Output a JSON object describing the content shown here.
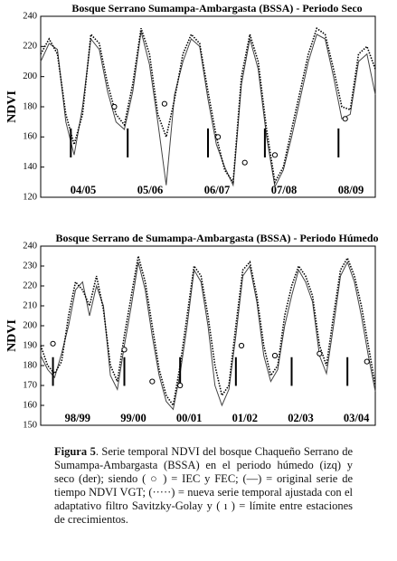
{
  "chart_data": [
    {
      "type": "line",
      "title": "Bosque Serrano Sumampa-Ambargasta (BSSA) - Periodo Seco",
      "y_label": "NDVI",
      "ylim": [
        120,
        240
      ],
      "yticks": [
        120,
        140,
        160,
        180,
        200,
        220,
        240
      ],
      "xlim": [
        0,
        5
      ],
      "season_labels": [
        "04/05",
        "05/06",
        "06/07",
        "07/08",
        "08/09"
      ],
      "x": [
        0,
        0.125,
        0.25,
        0.375,
        0.5,
        0.625,
        0.75,
        0.875,
        1,
        1.125,
        1.25,
        1.375,
        1.5,
        1.625,
        1.75,
        1.875,
        2,
        2.125,
        2.25,
        2.375,
        2.5,
        2.625,
        2.75,
        2.875,
        3,
        3.125,
        3.25,
        3.375,
        3.5,
        3.625,
        3.75,
        3.875,
        4,
        4.125,
        4.25,
        4.375,
        4.5,
        4.625,
        4.75,
        4.875,
        5
      ],
      "series": [
        {
          "color": "#444444",
          "dash": "solid",
          "values": [
            210,
            222,
            218,
            170,
            148,
            180,
            225,
            218,
            190,
            170,
            165,
            190,
            230,
            208,
            170,
            128,
            188,
            210,
            225,
            220,
            185,
            155,
            140,
            128,
            195,
            225,
            205,
            160,
            127,
            138,
            160,
            185,
            210,
            228,
            225,
            200,
            172,
            175,
            210,
            215,
            188
          ]
        },
        {
          "color": "#000000",
          "dash": "dotted",
          "values": [
            215,
            225,
            215,
            175,
            155,
            175,
            228,
            222,
            195,
            175,
            168,
            195,
            232,
            215,
            175,
            160,
            185,
            215,
            228,
            222,
            190,
            160,
            138,
            130,
            200,
            228,
            210,
            165,
            130,
            140,
            165,
            190,
            215,
            232,
            228,
            205,
            180,
            178,
            215,
            220,
            205
          ]
        }
      ],
      "markers": {
        "x": [
          1.1,
          1.85,
          2.65,
          3.05,
          3.5,
          4.55
        ],
        "values": [
          180,
          182,
          160,
          143,
          148,
          172
        ]
      },
      "boundaries": [
        0.45,
        1.3,
        2.5,
        3.35,
        4.45
      ]
    },
    {
      "type": "line",
      "title": "Bosque Serrano de Sumampa-Ambargasta (BSSA) - Periodo Húmedo",
      "y_label": "NDVI",
      "ylim": [
        150,
        240
      ],
      "yticks": [
        150,
        160,
        170,
        180,
        190,
        200,
        210,
        220,
        230,
        240
      ],
      "xlim": [
        0,
        6
      ],
      "season_labels": [
        "98/99",
        "99/00",
        "00/01",
        "01/02",
        "02/03",
        "03/04"
      ],
      "x": [
        0,
        0.125,
        0.25,
        0.375,
        0.5,
        0.625,
        0.75,
        0.875,
        1,
        1.125,
        1.25,
        1.375,
        1.5,
        1.625,
        1.75,
        1.875,
        2,
        2.125,
        2.25,
        2.375,
        2.5,
        2.625,
        2.75,
        2.875,
        3,
        3.125,
        3.25,
        3.375,
        3.5,
        3.625,
        3.75,
        3.875,
        4,
        4.125,
        4.25,
        4.375,
        4.5,
        4.625,
        4.75,
        4.875,
        5,
        5.125,
        5.25,
        5.375,
        5.5,
        5.625,
        5.75,
        5.875,
        6
      ],
      "series": [
        {
          "color": "#444444",
          "dash": "solid",
          "values": [
            185,
            178,
            174,
            186,
            200,
            218,
            222,
            205,
            220,
            210,
            175,
            168,
            190,
            210,
            232,
            218,
            195,
            175,
            162,
            158,
            176,
            200,
            228,
            222,
            200,
            170,
            160,
            168,
            195,
            225,
            230,
            212,
            185,
            172,
            178,
            200,
            215,
            228,
            222,
            212,
            185,
            176,
            200,
            225,
            232,
            222,
            205,
            185,
            167
          ]
        },
        {
          "color": "#000000",
          "dash": "dotted",
          "values": [
            190,
            180,
            176,
            182,
            205,
            222,
            218,
            210,
            225,
            208,
            180,
            172,
            195,
            215,
            235,
            222,
            200,
            178,
            165,
            160,
            180,
            205,
            230,
            225,
            205,
            180,
            165,
            170,
            200,
            228,
            232,
            215,
            190,
            175,
            180,
            205,
            220,
            230,
            225,
            215,
            190,
            180,
            205,
            228,
            234,
            225,
            210,
            190,
            170
          ]
        }
      ],
      "markers": {
        "x": [
          0.22,
          1.5,
          2.0,
          2.5,
          3.6,
          4.2,
          5.0,
          5.85
        ],
        "values": [
          191,
          188,
          172,
          170,
          190,
          185,
          186,
          182
        ]
      },
      "boundaries": [
        0.22,
        1.5,
        2.5,
        3.5,
        4.5,
        5.5
      ]
    }
  ],
  "caption": {
    "label": "Figura 5",
    "text": ". Serie temporal NDVI del bosque Chaqueño Serrano de Sumampa-Ambargasta (BSSA) en el periodo húmedo (izq) y seco (der); siendo ( ○ ) = IEC y FEC; (—) = original serie de tiempo NDVI VGT; (·····) = nueva serie temporal ajustada con el adaptativo filtro Savitzky-Golay y ( ı ) = límite entre estaciones de crecimientos."
  }
}
